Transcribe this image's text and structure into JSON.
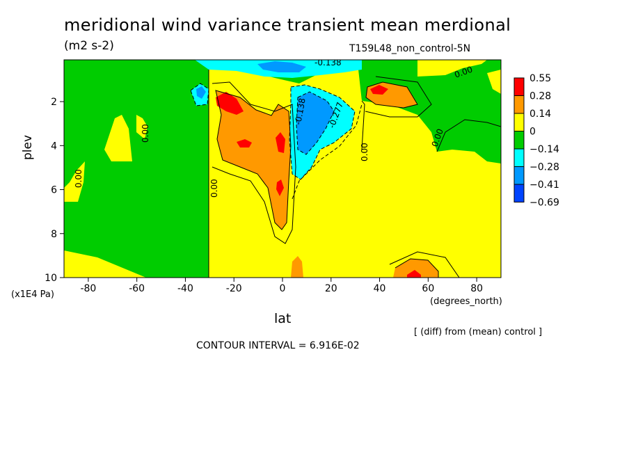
{
  "chart_data": {
    "type": "heatmap",
    "title": "meridional wind variance transient mean merdional",
    "units": "(m2 s-2)",
    "run_label": "T159L48_non_control-5N",
    "ylabel": "plev",
    "ylabel_unit": "(x1E4 Pa)",
    "xlabel": "lat",
    "xlabel_unit": "(degrees_north)",
    "note": "[ (diff) from (mean) control ]",
    "contour_interval": "CONTOUR INTERVAL = 6.916E-02",
    "xlim": [
      -90,
      90
    ],
    "ylim": [
      10,
      0.1
    ],
    "x_ticks": [
      -80,
      -60,
      -40,
      -20,
      0,
      20,
      40,
      60,
      80
    ],
    "y_ticks": [
      2,
      4,
      6,
      8,
      10
    ],
    "colorbar": {
      "labels": [
        "0.55",
        "0.28",
        "0.14",
        "0",
        "−0.14",
        "−0.28",
        "−0.41",
        "−0.69"
      ],
      "colors": [
        "#ff0000",
        "#ff9900",
        "#ffff00",
        "#00cc00",
        "#00ffff",
        "#0099ff",
        "#0044ff"
      ]
    },
    "contour_labels": [
      "0.00",
      "0.00",
      "0.00",
      "0.00",
      "0.00",
      "0.00",
      "-0.138",
      "-0.277",
      "-0.138"
    ],
    "features": [
      {
        "lat": -22,
        "plev": 2.2,
        "value": "0.28 to 0.55"
      },
      {
        "lat": -15,
        "plev": 4.0,
        "value": "0.28 to 0.55"
      },
      {
        "lat": 0,
        "plev": 4.0,
        "value": "0.28 to 0.55"
      },
      {
        "lat": -1,
        "plev": 6.0,
        "value": "0.28 to 0.55"
      },
      {
        "lat": 40,
        "plev": 1.5,
        "value": "0.28 to 0.55"
      },
      {
        "lat": 52,
        "plev": 9.9,
        "value": "0.28 to 0.55"
      },
      {
        "lat": 14,
        "plev": 3.0,
        "value": "-0.28 to -0.41"
      },
      {
        "lat": -34,
        "plev": 1.5,
        "value": "-0.14 to -0.28"
      },
      {
        "lat": 0,
        "plev": 0.4,
        "value": "-0.28 to -0.41"
      }
    ]
  }
}
